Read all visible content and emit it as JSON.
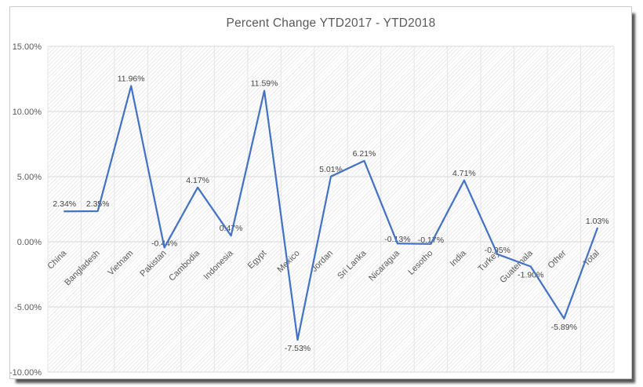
{
  "chart_data": {
    "type": "line",
    "title": "Percent Change YTD2017 - YTD2018",
    "categories": [
      "China",
      "Bangladesh",
      "Vietnam",
      "Pakistan",
      "Cambodia",
      "Indonesia",
      "Egypt",
      "Mexico",
      "Jordan",
      "Sri Lanka",
      "Nicaragua",
      "Lesotho",
      "India",
      "Turkey",
      "Guatemala",
      "Other",
      "Total"
    ],
    "values": [
      2.34,
      2.35,
      11.96,
      -0.44,
      4.17,
      0.47,
      11.59,
      -7.53,
      5.01,
      6.21,
      -0.13,
      -0.17,
      4.71,
      -0.95,
      -1.9,
      -5.89,
      1.03
    ],
    "point_labels": [
      "2.34%",
      "2.35%",
      "11.96%",
      "-0.44%",
      "4.17%",
      "0.47%",
      "11.59%",
      "-7.53%",
      "5.01%",
      "6.21%",
      "-0.13%",
      "-0.17%",
      "4.71%",
      "-0.95%",
      "-1.90%",
      "-5.89%",
      "1.03%"
    ],
    "y_ticks": [
      "15.00%",
      "10.00%",
      "5.00%",
      "0.00%",
      "-5.00%",
      "-10.00%"
    ],
    "y_tick_values": [
      15,
      10,
      5,
      0,
      -5,
      -10
    ],
    "ylim": [
      -10,
      15
    ],
    "xlabel": "",
    "ylabel": "",
    "grid": "on",
    "legend": "none"
  },
  "colors": {
    "line": "#4472C4",
    "grid_horizontal": "#d9d9d9",
    "grid_vertical": "#e4e4e4",
    "axis_text": "#595959",
    "data_label_text": "#454545",
    "title_text": "#595959",
    "frame_border": "#c9c9c9",
    "plot_hatch": "#ebebeb"
  }
}
